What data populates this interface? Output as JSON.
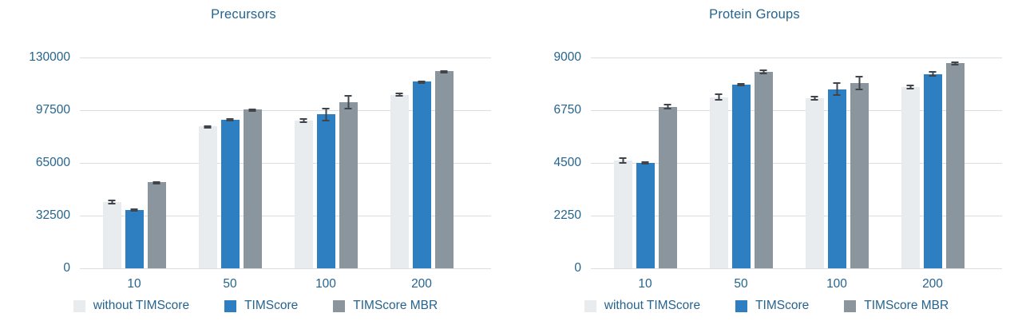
{
  "page": {
    "background": "#ffffff",
    "text_color": "#25648f",
    "gridline_color": "#d9dee2",
    "errorbar_color": "#3f454b"
  },
  "chart_data": [
    {
      "type": "bar",
      "title": "Precursors",
      "xlabel": "",
      "ylabel": "",
      "categories": [
        "10",
        "50",
        "100",
        "200"
      ],
      "series": [
        {
          "name": "without TIMScore",
          "color": "#e8ecef",
          "values": [
            41000,
            87500,
            91000,
            107000
          ],
          "errors": [
            1500,
            900,
            1500,
            1200
          ]
        },
        {
          "name": "TIMScore",
          "color": "#2e7fc1",
          "values": [
            36000,
            91500,
            95000,
            115000
          ],
          "errors": [
            800,
            900,
            4200,
            500
          ]
        },
        {
          "name": "TIMScore MBR",
          "color": "#8b959d",
          "values": [
            53000,
            98000,
            102500,
            121500
          ],
          "errors": [
            900,
            700,
            4500,
            400
          ]
        }
      ],
      "ylim": [
        0,
        130000
      ],
      "yticks": [
        0,
        32500,
        65000,
        97500,
        130000
      ],
      "grid": "horizontal",
      "error_bars": true,
      "legend_position": "bottom"
    },
    {
      "type": "bar",
      "title": "Protein Groups",
      "xlabel": "",
      "ylabel": "",
      "categories": [
        "10",
        "50",
        "100",
        "200"
      ],
      "series": [
        {
          "name": "without TIMScore",
          "color": "#e8ecef",
          "values": [
            4600,
            7300,
            7250,
            7750
          ],
          "errors": [
            150,
            150,
            100,
            100
          ]
        },
        {
          "name": "TIMScore",
          "color": "#2e7fc1",
          "values": [
            4500,
            7850,
            7650,
            8300
          ],
          "errors": [
            80,
            60,
            300,
            120
          ]
        },
        {
          "name": "TIMScore MBR",
          "color": "#8b959d",
          "values": [
            6900,
            8400,
            7900,
            8750
          ],
          "errors": [
            120,
            100,
            300,
            80
          ]
        }
      ],
      "ylim": [
        0,
        9000
      ],
      "yticks": [
        0,
        2250,
        4500,
        6750,
        9000
      ],
      "grid": "horizontal",
      "error_bars": true,
      "legend_position": "bottom"
    }
  ]
}
